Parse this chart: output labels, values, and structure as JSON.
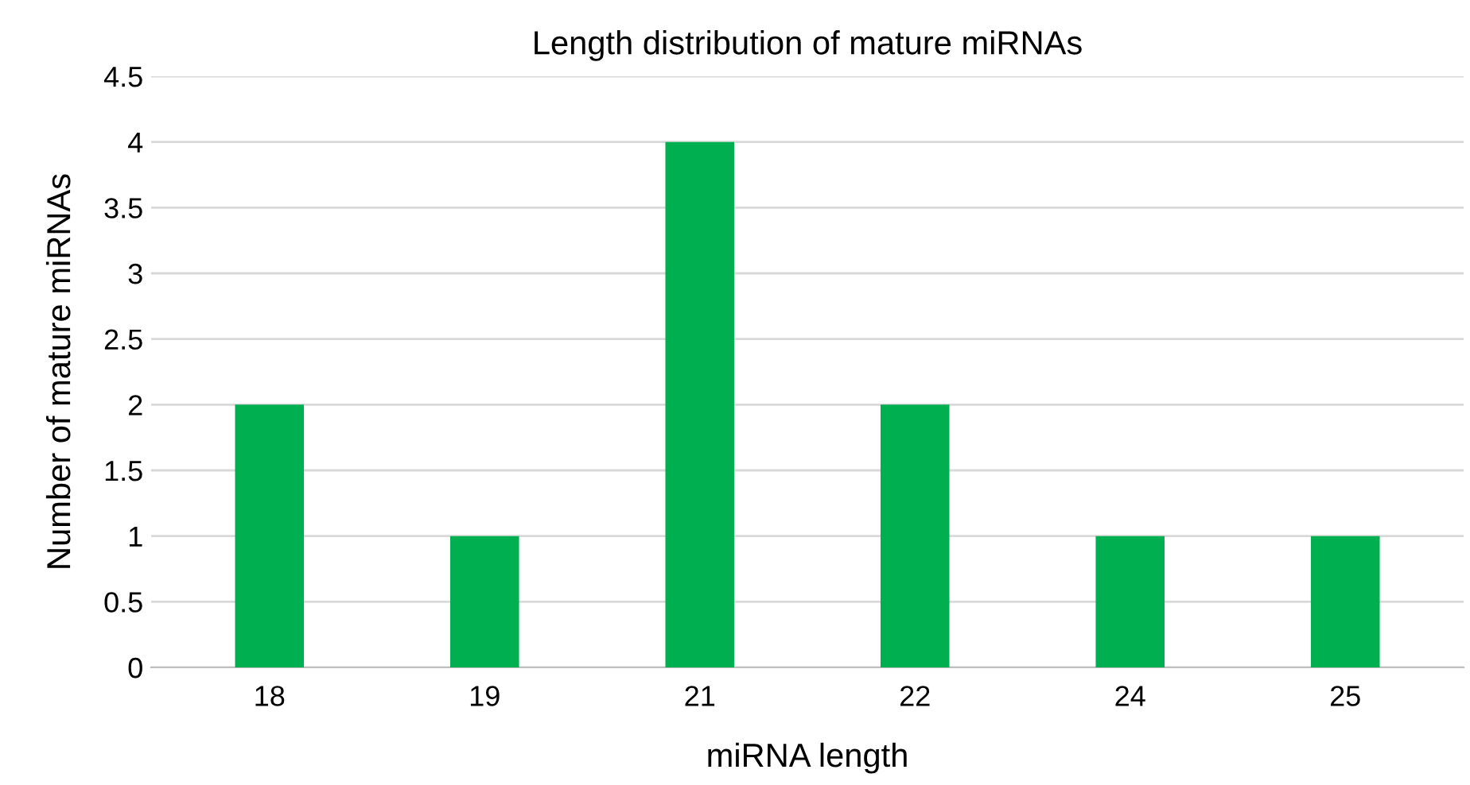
{
  "chart_data": {
    "type": "bar",
    "title": "Length distribution of mature miRNAs",
    "xlabel": "miRNA length",
    "ylabel": "Number of mature miRNAs",
    "categories": [
      "18",
      "19",
      "21",
      "22",
      "24",
      "25"
    ],
    "values": [
      2,
      1,
      4,
      2,
      1,
      1
    ],
    "color": "#00b050",
    "ylim": [
      0,
      4.5
    ],
    "yticks": [
      0,
      0.5,
      1,
      1.5,
      2,
      2.5,
      3,
      3.5,
      4,
      4.5
    ],
    "grid": "y",
    "legend": false
  }
}
